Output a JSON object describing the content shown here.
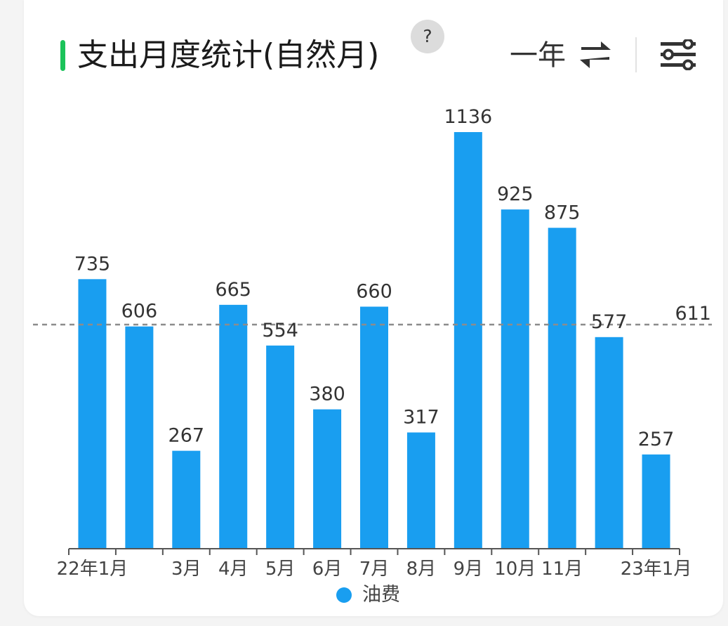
{
  "header": {
    "title": "支出月度统计(自然月)",
    "help_label": "?",
    "range_label": "一年"
  },
  "colors": {
    "accent": "#1bc35a",
    "bar": "#199ef0",
    "avg_line": "#8c8c8c",
    "text": "#333333"
  },
  "icons": {
    "swap": "swap-arrows-icon",
    "filter": "sliders-icon"
  },
  "chart_data": {
    "type": "bar",
    "categories": [
      "22年1月",
      "",
      "3月",
      "4月",
      "5月",
      "6月",
      "7月",
      "8月",
      "9月",
      "10月",
      "11月",
      "",
      "23年1月"
    ],
    "series": [
      {
        "name": "油费",
        "values": [
          735,
          606,
          267,
          665,
          554,
          380,
          660,
          317,
          1136,
          925,
          875,
          577,
          257
        ]
      }
    ],
    "data_labels": [
      "735",
      "606",
      "267",
      "665",
      "554",
      "380",
      "660",
      "317",
      "1136",
      "925",
      "875",
      "577",
      "257"
    ],
    "reference_line": {
      "value": 611,
      "label": "611",
      "style": "dashed"
    },
    "ylim": [
      0,
      1300
    ],
    "legend": "bottom-center",
    "grid": false
  }
}
